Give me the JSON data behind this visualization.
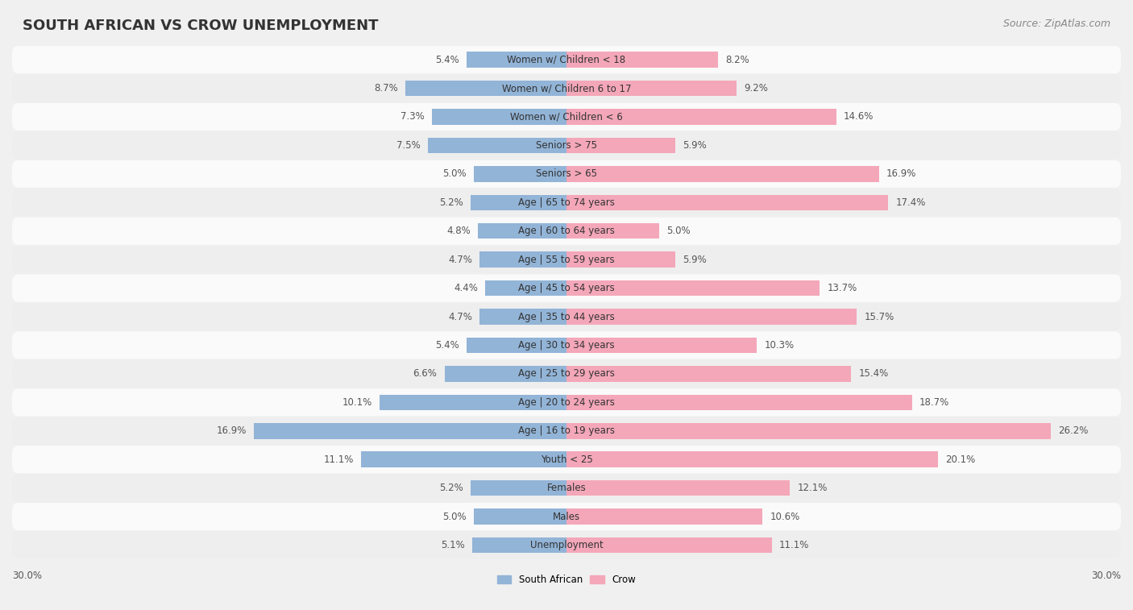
{
  "title": "SOUTH AFRICAN VS CROW UNEMPLOYMENT",
  "source": "Source: ZipAtlas.com",
  "categories": [
    "Unemployment",
    "Males",
    "Females",
    "Youth < 25",
    "Age | 16 to 19 years",
    "Age | 20 to 24 years",
    "Age | 25 to 29 years",
    "Age | 30 to 34 years",
    "Age | 35 to 44 years",
    "Age | 45 to 54 years",
    "Age | 55 to 59 years",
    "Age | 60 to 64 years",
    "Age | 65 to 74 years",
    "Seniors > 65",
    "Seniors > 75",
    "Women w/ Children < 6",
    "Women w/ Children 6 to 17",
    "Women w/ Children < 18"
  ],
  "south_african": [
    5.1,
    5.0,
    5.2,
    11.1,
    16.9,
    10.1,
    6.6,
    5.4,
    4.7,
    4.4,
    4.7,
    4.8,
    5.2,
    5.0,
    7.5,
    7.3,
    8.7,
    5.4
  ],
  "crow": [
    11.1,
    10.6,
    12.1,
    20.1,
    26.2,
    18.7,
    15.4,
    10.3,
    15.7,
    13.7,
    5.9,
    5.0,
    17.4,
    16.9,
    5.9,
    14.6,
    9.2,
    8.2
  ],
  "south_african_color": "#92b4d7",
  "crow_color": "#f4a7b9",
  "background_color": "#f0f0f0",
  "row_colors": [
    "#fafafa",
    "#eeeeee"
  ],
  "max_val": 30.0,
  "legend_sa": "South African",
  "legend_crow": "Crow",
  "title_fontsize": 13,
  "source_fontsize": 9,
  "label_fontsize": 8.5,
  "bar_height": 0.55
}
